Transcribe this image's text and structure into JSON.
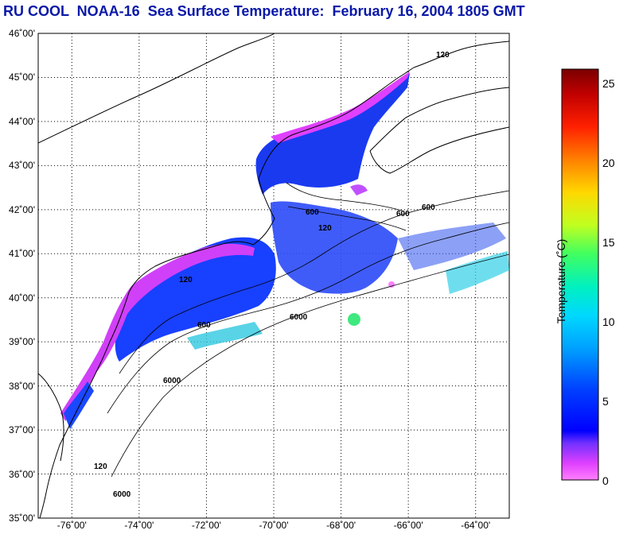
{
  "title": "RU COOL  NOAA-16  Sea Surface Temperature:  February 16, 2004 1805 GMT",
  "map": {
    "lat_labels": [
      "46˚00'",
      "45˚00'",
      "44˚00'",
      "43˚00'",
      "42˚00'",
      "41˚00'",
      "40˚00'",
      "39˚00'",
      "38˚00'",
      "37˚00'",
      "36˚00'",
      "35˚00'"
    ],
    "lon_labels": [
      "-76˚00'",
      "-74˚00'",
      "-72˚00'",
      "-70˚00'",
      "-68˚00'",
      "-66˚00'",
      "-64˚00'"
    ],
    "depth_labels": [
      "120",
      "600",
      "6000"
    ],
    "extent": {
      "lon_min": -77,
      "lon_max": -63,
      "lat_min": 35,
      "lat_max": 46
    },
    "grid": "dotted"
  },
  "colorbar": {
    "title": "Temperature (˚C)",
    "ticks": [
      "25",
      "20",
      "15",
      "10",
      "5",
      "0"
    ],
    "range": [
      0,
      26
    ],
    "colors": [
      "#ff80ff",
      "#e040ff",
      "#9030ff",
      "#0000ff",
      "#0070ff",
      "#00c8ff",
      "#00e8c0",
      "#40ff60",
      "#c0ff20",
      "#ffe000",
      "#ff8000",
      "#ff2000",
      "#c00000",
      "#800000"
    ]
  }
}
